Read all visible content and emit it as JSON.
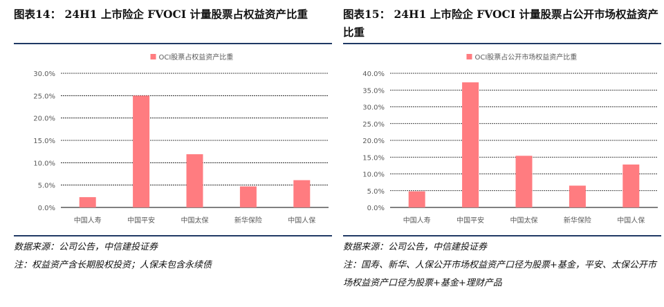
{
  "left": {
    "figure_title": "图表14： 24H1 上市险企 FVOCI 计量股票占权益资产比重",
    "source": "数据来源：公司公告，中信建投证券",
    "note": "注：权益资产含长期股权投资；人保未包含永续债"
  },
  "right": {
    "figure_title": "图表15： 24H1 上市险企 FVOCI 计量股票占公开市场权益资产比重",
    "source": "数据来源：公司公告，中信建投证券",
    "note": "注：国寿、新华、人保公开市场权益资产口径为股票+基金，平安、太保公开市场权益资产口径为股票+基金+理财产品"
  },
  "colors": {
    "bar": "#ff7c80",
    "rule": "#1f3864",
    "grid": "#000000",
    "text": "#595959"
  },
  "chart_data": [
    {
      "type": "bar",
      "title": "",
      "categories": [
        "中国人寿",
        "中国平安",
        "中国太保",
        "新华保险",
        "中国人保"
      ],
      "series": [
        {
          "name": "OCI股票占权益资产比重",
          "values": [
            2.3,
            25.0,
            11.9,
            4.7,
            6.1
          ]
        }
      ],
      "yticks": [
        "0.0%",
        "5.0%",
        "10.0%",
        "15.0%",
        "20.0%",
        "25.0%",
        "30.0%"
      ],
      "ylim": [
        0,
        30
      ],
      "legend": "top-center",
      "grid": true
    },
    {
      "type": "bar",
      "title": "",
      "categories": [
        "中国人寿",
        "中国平安",
        "中国太保",
        "新华保险",
        "中国人保"
      ],
      "series": [
        {
          "name": "OCI股票占公开市场权益资产比重",
          "values": [
            4.8,
            37.3,
            15.4,
            6.5,
            12.8
          ]
        }
      ],
      "yticks": [
        "0.0%",
        "5.0%",
        "10.0%",
        "15.0%",
        "20.0%",
        "25.0%",
        "30.0%",
        "35.0%",
        "40.0%"
      ],
      "ylim": [
        0,
        40
      ],
      "legend": "top-center",
      "grid": true
    }
  ]
}
